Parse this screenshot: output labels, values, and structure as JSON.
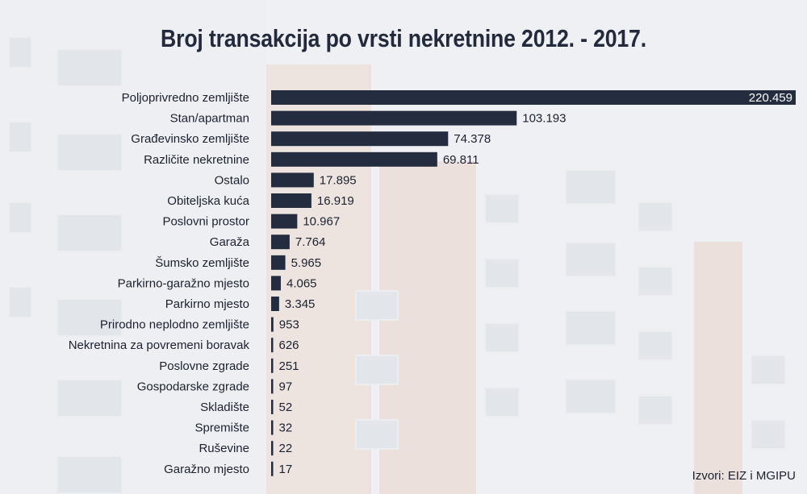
{
  "chart_data": {
    "type": "bar",
    "orientation": "horizontal",
    "title": "Broj transakcija po vrsti nekretnine 2012. - 2017.",
    "xlabel": "",
    "ylabel": "",
    "xlim": [
      0,
      220459
    ],
    "grid": false,
    "legend": "none",
    "bar_color": "#242d40",
    "categories": [
      "Poljoprivredno zemljište",
      "Stan/apartman",
      "Građevinsko zemljište",
      "Različite nekretnine",
      "Ostalo",
      "Obiteljska kuća",
      "Poslovni prostor",
      "Garaža",
      "Šumsko zemljište",
      "Parkirno-garažno mjesto",
      "Parkirno mjesto",
      "Prirodno neplodno zemljište",
      "Nekretnina za povremeni boravak",
      "Poslovne zgrade",
      "Gospodarske zgrade",
      "Skladište",
      "Spremište",
      "Ruševine",
      "Garažno mjesto"
    ],
    "values": [
      220459,
      103193,
      74378,
      69811,
      17895,
      16919,
      10967,
      7764,
      5965,
      4065,
      3345,
      953,
      626,
      251,
      97,
      52,
      32,
      22,
      17
    ],
    "value_labels": [
      "220.459",
      "103.193",
      "74.378",
      "69.811",
      "17.895",
      "16.919",
      "10.967",
      "7.764",
      "5.965",
      "4.065",
      "3.345",
      "953",
      "626",
      "251",
      "97",
      "52",
      "32",
      "22",
      "17"
    ]
  },
  "source": "Izvori: EIZ i MGIPU",
  "colors": {
    "bar": "#242d40",
    "text": "#1b2130",
    "title": "#222a3c",
    "inside_label": "#ffffff"
  }
}
